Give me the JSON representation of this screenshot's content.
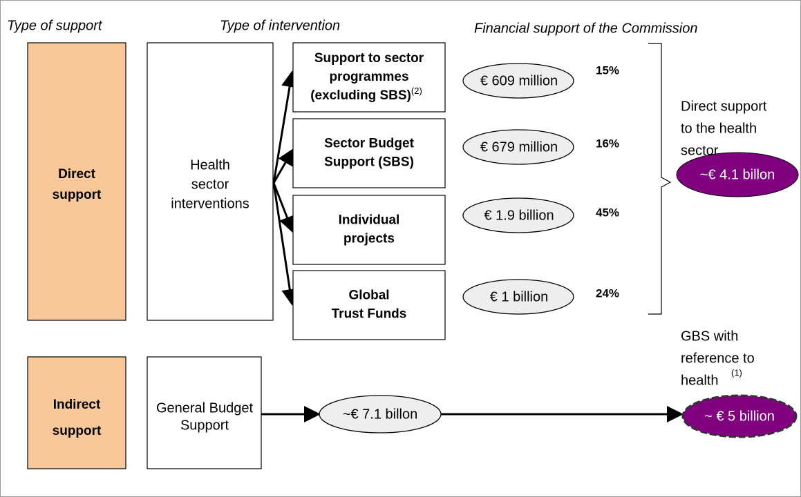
{
  "headers": {
    "support": "Type of support",
    "intervention": "Type of intervention",
    "financial": "Financial support of the Commission"
  },
  "direct": {
    "label": [
      "Direct",
      "support"
    ],
    "intervention": [
      "Health",
      "sector",
      "interventions"
    ],
    "items": [
      {
        "label": [
          "Support to sector",
          "programmes",
          "(excluding SBS)"
        ],
        "note": "(2)",
        "amount": "€ 609 million",
        "share": "15%"
      },
      {
        "label": [
          "Sector Budget",
          "Support (SBS)"
        ],
        "amount": "€ 679 million",
        "share": "16%"
      },
      {
        "label": [
          "Individual",
          "projects"
        ],
        "amount": "€ 1.9 billion",
        "share": "45%"
      },
      {
        "label": [
          "Global",
          "Trust Funds"
        ],
        "amount": "€ 1 billion",
        "share": "24%"
      }
    ],
    "total_label": [
      "Direct support",
      "to the health",
      "sector"
    ],
    "total": "~€ 4.1 billon"
  },
  "indirect": {
    "label": [
      "Indirect",
      "support"
    ],
    "intervention": [
      "General Budget",
      "Support"
    ],
    "amount": "~€ 7.1 billon",
    "result_label": [
      "GBS with",
      "reference to",
      "health"
    ],
    "result_note": "(1)",
    "result": "~ € 5 billion"
  }
}
